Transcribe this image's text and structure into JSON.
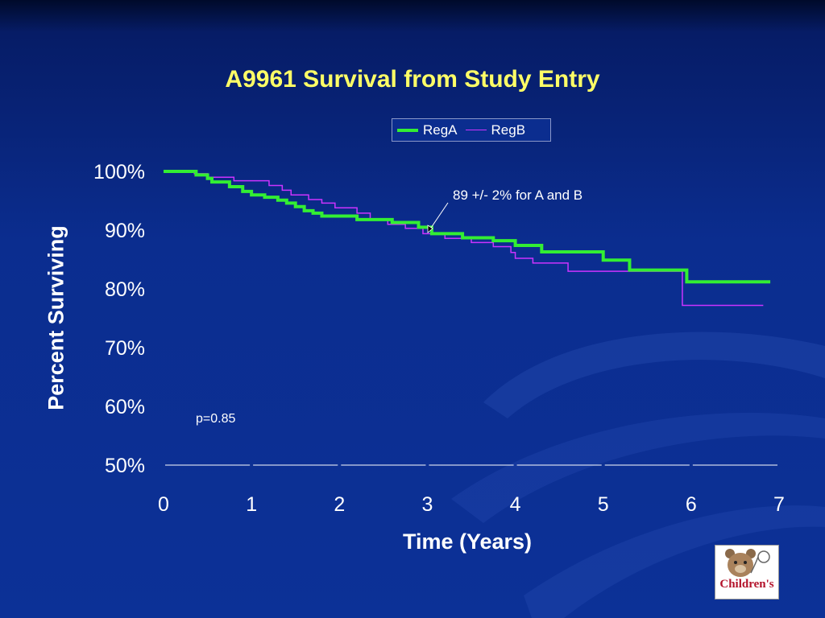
{
  "slide": {
    "title": "A9961 Survival from Study Entry",
    "annotation": "89 +/- 2% for A and B",
    "pvalue": "p=0.85",
    "logo_text": "Children's"
  },
  "colors": {
    "background": "#0b2d8f",
    "title": "#ffff66",
    "regA": "#33ee33",
    "regB": "#cc33ff",
    "text": "#ffffff"
  },
  "chart_data": {
    "type": "line",
    "title": "A9961 Survival from Study Entry",
    "xlabel": "Time (Years)",
    "ylabel": "Percent Surviving",
    "xlim": [
      0,
      7
    ],
    "ylim": [
      50,
      100
    ],
    "x_ticks": [
      "0",
      "1",
      "2",
      "3",
      "4",
      "5",
      "6",
      "7"
    ],
    "y_ticks": [
      "50%",
      "60%",
      "70%",
      "80%",
      "90%",
      "100%"
    ],
    "legend": "top-center",
    "grid": false,
    "series": [
      {
        "name": "RegA",
        "color": "#33ee33",
        "step": true,
        "points": [
          [
            0,
            100
          ],
          [
            0.37,
            99.4
          ],
          [
            0.5,
            98.8
          ],
          [
            0.55,
            98.2
          ],
          [
            0.75,
            97.4
          ],
          [
            0.9,
            96.6
          ],
          [
            1.0,
            96.0
          ],
          [
            1.15,
            95.6
          ],
          [
            1.3,
            95.1
          ],
          [
            1.4,
            94.6
          ],
          [
            1.5,
            94.0
          ],
          [
            1.6,
            93.3
          ],
          [
            1.7,
            92.9
          ],
          [
            1.8,
            92.4
          ],
          [
            2.2,
            91.8
          ],
          [
            2.6,
            91.3
          ],
          [
            2.9,
            90.5
          ],
          [
            3.05,
            89.4
          ],
          [
            3.4,
            88.7
          ],
          [
            3.75,
            88.2
          ],
          [
            4.0,
            87.4
          ],
          [
            4.3,
            86.3
          ],
          [
            5.0,
            84.9
          ],
          [
            5.3,
            83.2
          ],
          [
            5.95,
            81.2
          ],
          [
            6.9,
            81.2
          ]
        ]
      },
      {
        "name": "RegB",
        "color": "#cc33ff",
        "step": true,
        "points": [
          [
            0,
            100
          ],
          [
            0.35,
            99.6
          ],
          [
            0.5,
            99.0
          ],
          [
            0.8,
            98.4
          ],
          [
            1.2,
            97.6
          ],
          [
            1.35,
            96.8
          ],
          [
            1.45,
            96.0
          ],
          [
            1.65,
            95.2
          ],
          [
            1.8,
            94.6
          ],
          [
            1.95,
            93.8
          ],
          [
            2.2,
            92.9
          ],
          [
            2.35,
            91.8
          ],
          [
            2.55,
            91.0
          ],
          [
            2.75,
            90.3
          ],
          [
            2.95,
            89.4
          ],
          [
            3.2,
            88.6
          ],
          [
            3.5,
            87.9
          ],
          [
            3.75,
            87.2
          ],
          [
            3.95,
            86.2
          ],
          [
            4.0,
            85.2
          ],
          [
            4.2,
            84.4
          ],
          [
            4.6,
            83.0
          ],
          [
            5.9,
            77.2
          ],
          [
            6.82,
            77.2
          ]
        ]
      }
    ]
  }
}
